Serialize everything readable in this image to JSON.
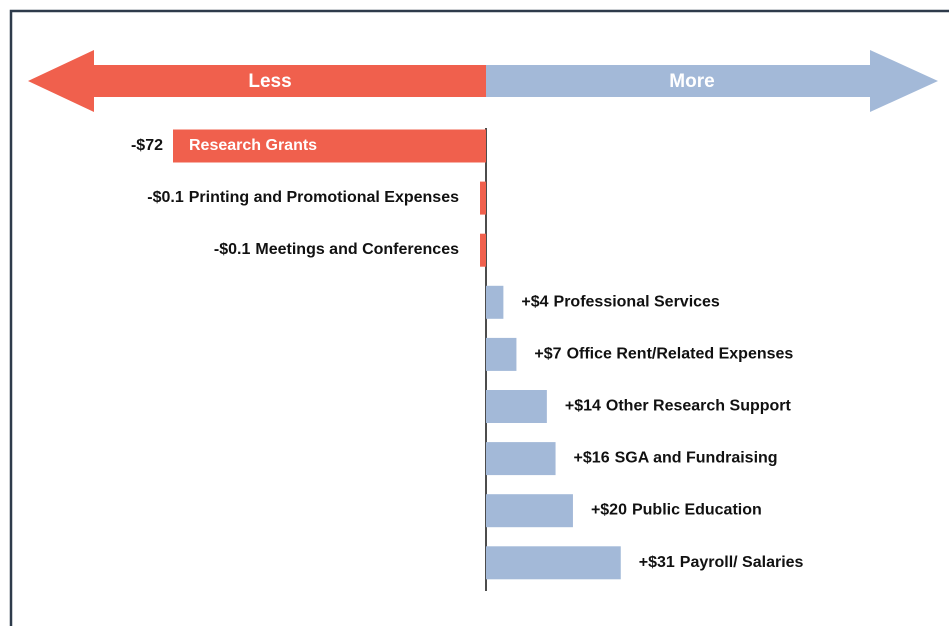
{
  "chart_data": {
    "type": "bar",
    "orientation": "horizontal",
    "direction_labels": [
      "Less",
      "More"
    ],
    "categories": [
      "Research Grants",
      "Printing and Promotional Expenses",
      "Meetings and Conferences",
      "Professional Services",
      "Office Rent/Related Expenses",
      "Other Research Support",
      "SGA and Fundraising",
      "Public Education",
      "Payroll/ Salaries"
    ],
    "values": [
      -72,
      -0.1,
      -0.1,
      4,
      7,
      14,
      16,
      20,
      31
    ],
    "value_labels": [
      "-$72",
      "-$0.1",
      "-$0.1",
      "+$4",
      "+$7",
      "+$14",
      "+$16",
      "+$20",
      "+$31"
    ],
    "colors": {
      "negative": "#f0604d",
      "positive": "#a3b9d8"
    }
  }
}
